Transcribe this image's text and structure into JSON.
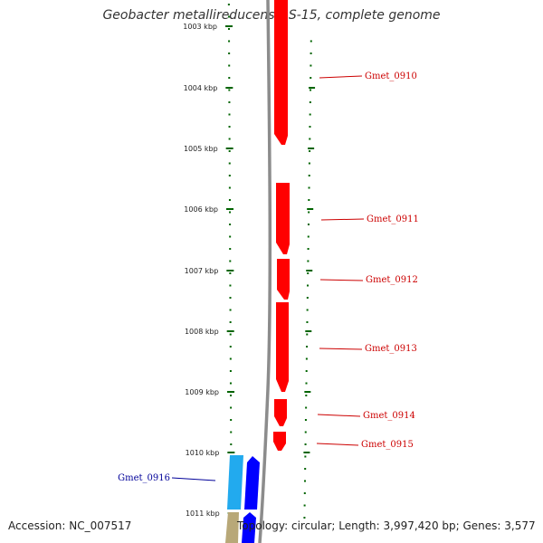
{
  "title": "Geobacter metallireducens GS-15, complete genome",
  "accession_text": "Accession: NC_007517",
  "stats_text": "Topology: circular; Length: 3,997,420 bp; Genes: 3,577",
  "colors": {
    "backbone": "#8c8c8c",
    "tick": "#006400",
    "forward_gene": "#ff0000",
    "forward_label": "#cc0000",
    "reverse_gene": "#0000ff",
    "reverse_light_gene": "#22aaee",
    "reverse_label": "#000099",
    "tan_gene": "#b8a878"
  },
  "map": {
    "kbp_labels": [
      "1003 kbp",
      "1004 kbp",
      "1005 kbp",
      "1006 kbp",
      "1007 kbp",
      "1008 kbp",
      "1009 kbp",
      "1010 kbp",
      "1011 kbp"
    ],
    "forward_genes": [
      "Gmet_0910",
      "Gmet_0911",
      "Gmet_0912",
      "Gmet_0913",
      "Gmet_0914",
      "Gmet_0915"
    ],
    "reverse_genes": [
      "Gmet_0916"
    ]
  }
}
